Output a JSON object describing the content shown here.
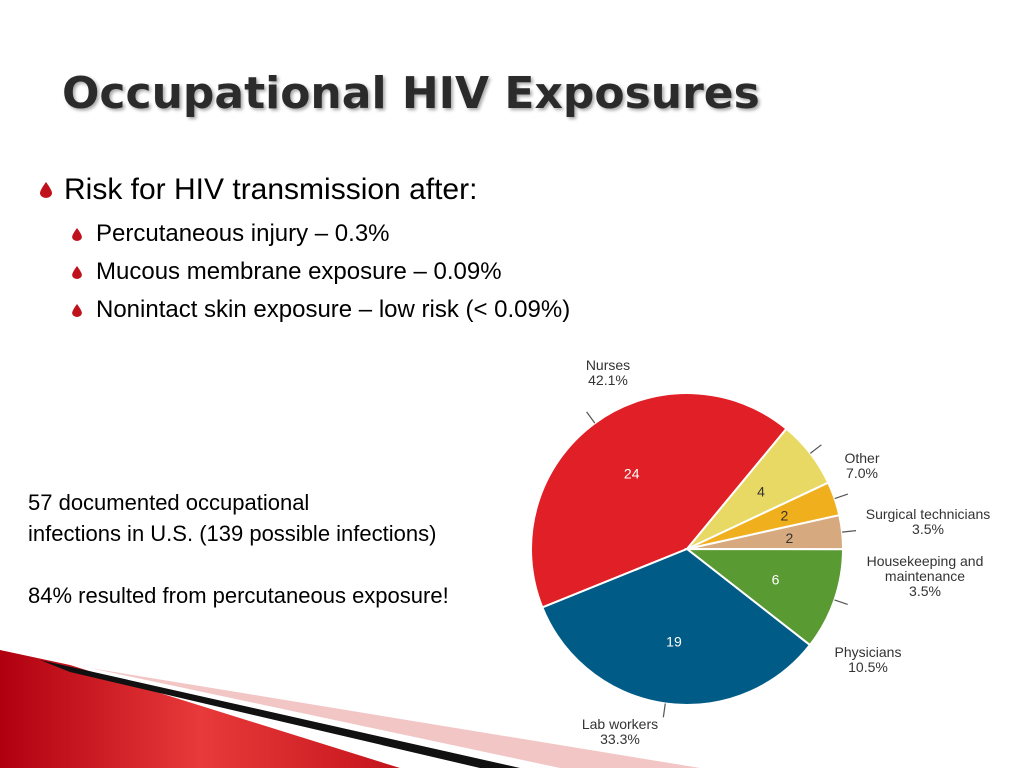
{
  "slide": {
    "title": "Occupational HIV Exposures",
    "bullet_main": "Risk for HIV transmission after:",
    "sub_bullets": [
      "Percutaneous injury – 0.3%",
      "Mucous membrane exposure – 0.09%",
      "Nonintact skin exposure – low risk (< 0.09%)"
    ],
    "note_lines": [
      "57 documented occupational",
      "infections in U.S. (139 possible infections)",
      "84% resulted from percutaneous exposure!"
    ],
    "bullet_color": "#c0121c"
  },
  "chart_data": {
    "type": "pie",
    "title": "",
    "slices": [
      {
        "label": "Nurses",
        "value": 24,
        "percent": "42.1%",
        "color": "#e11f26"
      },
      {
        "label": "Other",
        "value": 4,
        "percent": "7.0%",
        "color": "#e8d964"
      },
      {
        "label": "Surgical technicians",
        "value": 2,
        "percent": "3.5%",
        "color": "#f0b01e"
      },
      {
        "label": "Housekeeping and maintenance",
        "value": 2,
        "percent": "3.5%",
        "color": "#d6aa7e"
      },
      {
        "label": "Physicians",
        "value": 6,
        "percent": "10.5%",
        "color": "#5a9a32"
      },
      {
        "label": "Lab workers",
        "value": 19,
        "percent": "33.3%",
        "color": "#005b86"
      }
    ]
  }
}
